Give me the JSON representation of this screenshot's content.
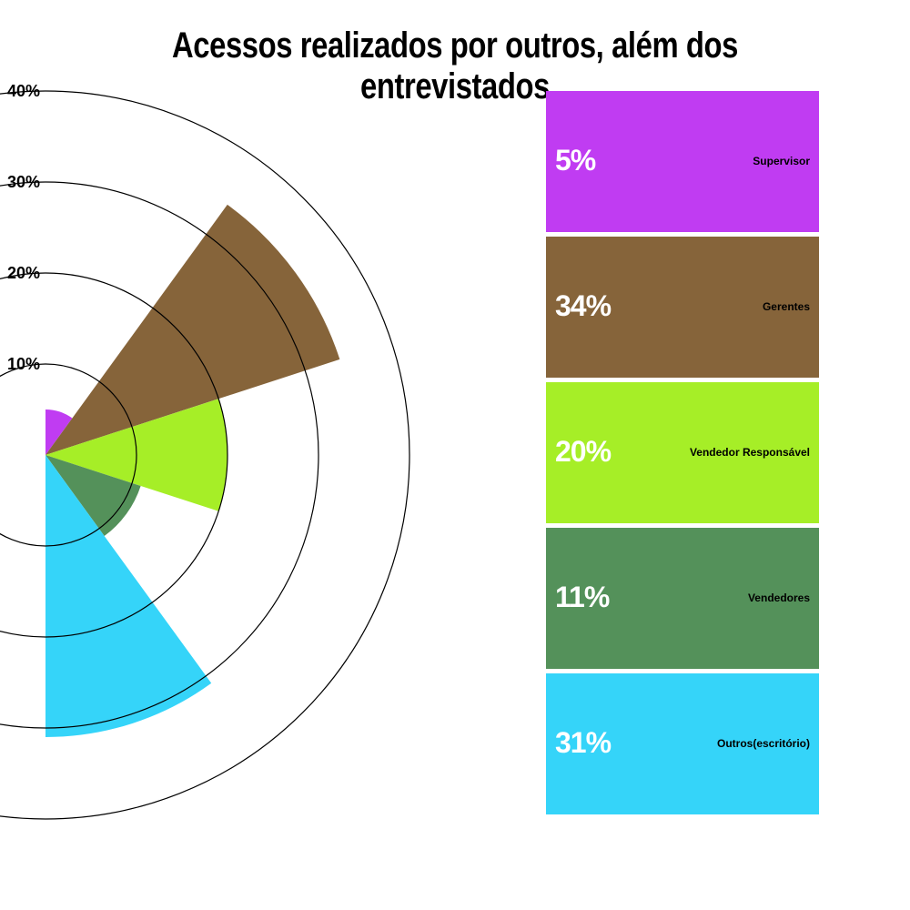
{
  "chart_data": {
    "type": "polar-area",
    "title": "Acessos realizados por outros, além dos entrevistados",
    "r_ticks": [
      "10%",
      "20%",
      "30%",
      "40%"
    ],
    "r_max": 40,
    "categories": [
      "Supervisor",
      "Gerentes",
      "Vendedor Responsável",
      "Vendedores",
      "Outros(escritório)"
    ],
    "values": [
      5,
      34,
      20,
      11,
      31
    ],
    "value_labels": [
      "5%",
      "34%",
      "20%",
      "11%",
      "31%"
    ],
    "colors": [
      "#c03cf2",
      "#86643a",
      "#a6ee27",
      "#54915a",
      "#35d4f9"
    ],
    "legend_position": "right"
  }
}
